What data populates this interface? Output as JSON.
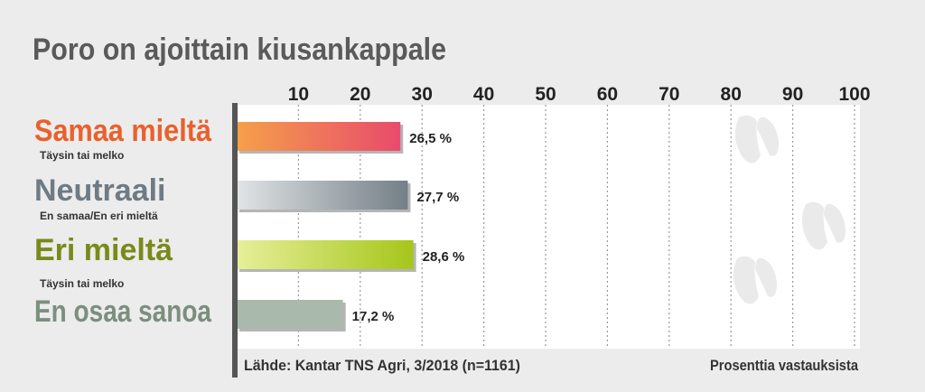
{
  "chart_data": {
    "type": "bar",
    "orientation": "horizontal",
    "title": "Poro on ajoittain kiusankappale",
    "categories": [
      {
        "label": "Samaa mieltä",
        "sublabel": "Täysin tai melko",
        "value": 26.5,
        "value_label": "26,5 %",
        "label_color": "#e8612c",
        "bar_colors": [
          "#f5a04a",
          "#e84b6c"
        ]
      },
      {
        "label": "Neutraali",
        "sublabel": "En samaa/En eri mieltä",
        "value": 27.7,
        "value_label": "27,7 %",
        "label_color": "#6e7b84",
        "bar_colors": [
          "#e1e4e6",
          "#747f87"
        ]
      },
      {
        "label": "Eri mieltä",
        "sublabel": "Täysin tai melko",
        "value": 28.6,
        "value_label": "28,6 %",
        "label_color": "#7a8a1a",
        "bar_colors": [
          "#e7ef9a",
          "#a5c61a"
        ]
      },
      {
        "label": "En osaa sanoa",
        "sublabel": "",
        "value": 17.2,
        "value_label": "17,2 %",
        "label_color": "#7c8f7f",
        "bar_colors": [
          "#a9b9ab",
          "#a9b9ab"
        ]
      }
    ],
    "xlim": [
      0,
      100
    ],
    "ticks": [
      10,
      20,
      30,
      40,
      50,
      60,
      70,
      80,
      90,
      100
    ],
    "grid": "dotted-vertical",
    "source": "Lähde: Kantar TNS Agri, 3/2018 (n=1161)",
    "unit_note": "Prosenttia vastauksista"
  }
}
